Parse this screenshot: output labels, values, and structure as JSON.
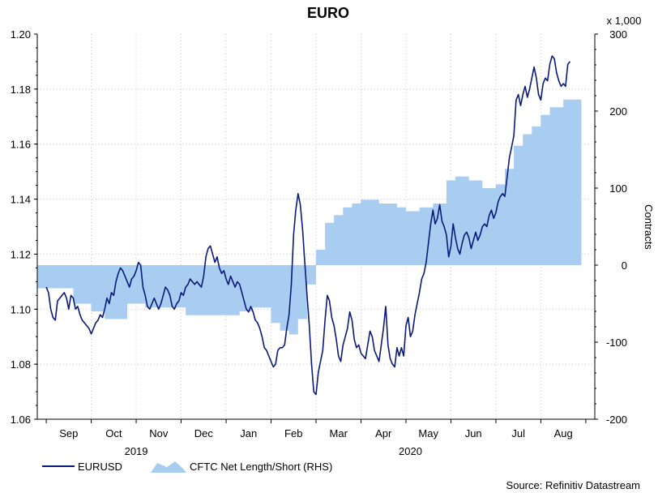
{
  "chart_data": {
    "type": "line",
    "title": "EURO",
    "xlabel": "",
    "ylabel": "",
    "y2label": "Contracts",
    "y2_multiplier": "x 1,000",
    "ylim": [
      1.06,
      1.2
    ],
    "y2lim": [
      -200,
      300
    ],
    "yticks": [
      "1.06",
      "1.08",
      "1.10",
      "1.12",
      "1.14",
      "1.16",
      "1.18",
      "1.20"
    ],
    "y2ticks": [
      "-200",
      "-100",
      "0",
      "100",
      "200",
      "300"
    ],
    "months": [
      "Sep",
      "Oct",
      "Nov",
      "Dec",
      "Jan",
      "Feb",
      "Mar",
      "Apr",
      "May",
      "Jun",
      "Jul",
      "Aug"
    ],
    "years": [
      "2019",
      "2020"
    ],
    "x_range": [
      -0.2,
      12.2
    ],
    "series": [
      {
        "name": "EURUSD",
        "axis": "left",
        "color": "#0a1a7a",
        "points": [
          [
            0.0,
            1.108
          ],
          [
            0.05,
            1.106
          ],
          [
            0.1,
            1.1
          ],
          [
            0.15,
            1.097
          ],
          [
            0.2,
            1.096
          ],
          [
            0.25,
            1.103
          ],
          [
            0.3,
            1.104
          ],
          [
            0.35,
            1.105
          ],
          [
            0.4,
            1.106
          ],
          [
            0.45,
            1.104
          ],
          [
            0.5,
            1.1
          ],
          [
            0.55,
            1.105
          ],
          [
            0.6,
            1.104
          ],
          [
            0.65,
            1.1
          ],
          [
            0.7,
            1.101
          ],
          [
            0.75,
            1.098
          ],
          [
            0.8,
            1.096
          ],
          [
            0.85,
            1.095
          ],
          [
            0.9,
            1.094
          ],
          [
            0.95,
            1.093
          ],
          [
            1.0,
            1.091
          ],
          [
            1.05,
            1.093
          ],
          [
            1.1,
            1.095
          ],
          [
            1.15,
            1.096
          ],
          [
            1.2,
            1.098
          ],
          [
            1.25,
            1.097
          ],
          [
            1.3,
            1.1
          ],
          [
            1.35,
            1.104
          ],
          [
            1.4,
            1.102
          ],
          [
            1.45,
            1.106
          ],
          [
            1.5,
            1.105
          ],
          [
            1.55,
            1.11
          ],
          [
            1.6,
            1.113
          ],
          [
            1.65,
            1.115
          ],
          [
            1.7,
            1.114
          ],
          [
            1.75,
            1.112
          ],
          [
            1.8,
            1.11
          ],
          [
            1.85,
            1.108
          ],
          [
            1.9,
            1.111
          ],
          [
            1.95,
            1.112
          ],
          [
            2.0,
            1.114
          ],
          [
            2.05,
            1.117
          ],
          [
            2.1,
            1.116
          ],
          [
            2.15,
            1.108
          ],
          [
            2.2,
            1.105
          ],
          [
            2.25,
            1.101
          ],
          [
            2.3,
            1.1
          ],
          [
            2.35,
            1.102
          ],
          [
            2.4,
            1.104
          ],
          [
            2.45,
            1.102
          ],
          [
            2.5,
            1.1
          ],
          [
            2.55,
            1.102
          ],
          [
            2.6,
            1.105
          ],
          [
            2.65,
            1.108
          ],
          [
            2.7,
            1.107
          ],
          [
            2.75,
            1.105
          ],
          [
            2.8,
            1.101
          ],
          [
            2.85,
            1.1
          ],
          [
            2.9,
            1.102
          ],
          [
            2.95,
            1.103
          ],
          [
            3.0,
            1.106
          ],
          [
            3.05,
            1.105
          ],
          [
            3.1,
            1.108
          ],
          [
            3.15,
            1.109
          ],
          [
            3.2,
            1.111
          ],
          [
            3.25,
            1.11
          ],
          [
            3.3,
            1.109
          ],
          [
            3.35,
            1.11
          ],
          [
            3.4,
            1.109
          ],
          [
            3.45,
            1.108
          ],
          [
            3.5,
            1.112
          ],
          [
            3.55,
            1.119
          ],
          [
            3.6,
            1.122
          ],
          [
            3.65,
            1.123
          ],
          [
            3.7,
            1.12
          ],
          [
            3.75,
            1.117
          ],
          [
            3.8,
            1.119
          ],
          [
            3.85,
            1.115
          ],
          [
            3.9,
            1.113
          ],
          [
            3.95,
            1.114
          ],
          [
            4.0,
            1.111
          ],
          [
            4.05,
            1.109
          ],
          [
            4.1,
            1.112
          ],
          [
            4.15,
            1.11
          ],
          [
            4.2,
            1.108
          ],
          [
            4.25,
            1.11
          ],
          [
            4.3,
            1.109
          ],
          [
            4.35,
            1.106
          ],
          [
            4.4,
            1.103
          ],
          [
            4.45,
            1.1
          ],
          [
            4.5,
            1.099
          ],
          [
            4.55,
            1.101
          ],
          [
            4.6,
            1.099
          ],
          [
            4.65,
            1.096
          ],
          [
            4.7,
            1.095
          ],
          [
            4.75,
            1.093
          ],
          [
            4.8,
            1.09
          ],
          [
            4.85,
            1.086
          ],
          [
            4.9,
            1.085
          ],
          [
            4.95,
            1.083
          ],
          [
            5.0,
            1.081
          ],
          [
            5.05,
            1.079
          ],
          [
            5.1,
            1.08
          ],
          [
            5.15,
            1.085
          ],
          [
            5.2,
            1.086
          ],
          [
            5.25,
            1.086
          ],
          [
            5.3,
            1.087
          ],
          [
            5.35,
            1.093
          ],
          [
            5.4,
            1.098
          ],
          [
            5.45,
            1.109
          ],
          [
            5.5,
            1.127
          ],
          [
            5.55,
            1.136
          ],
          [
            5.6,
            1.142
          ],
          [
            5.65,
            1.138
          ],
          [
            5.7,
            1.129
          ],
          [
            5.75,
            1.117
          ],
          [
            5.8,
            1.105
          ],
          [
            5.85,
            1.094
          ],
          [
            5.9,
            1.08
          ],
          [
            5.95,
            1.07
          ],
          [
            6.0,
            1.069
          ],
          [
            6.05,
            1.077
          ],
          [
            6.1,
            1.081
          ],
          [
            6.15,
            1.085
          ],
          [
            6.2,
            1.096
          ],
          [
            6.25,
            1.105
          ],
          [
            6.3,
            1.103
          ],
          [
            6.35,
            1.097
          ],
          [
            6.4,
            1.094
          ],
          [
            6.45,
            1.089
          ],
          [
            6.5,
            1.083
          ],
          [
            6.55,
            1.081
          ],
          [
            6.6,
            1.087
          ],
          [
            6.65,
            1.09
          ],
          [
            6.7,
            1.093
          ],
          [
            6.75,
            1.099
          ],
          [
            6.8,
            1.096
          ],
          [
            6.85,
            1.089
          ],
          [
            6.9,
            1.086
          ],
          [
            6.95,
            1.087
          ],
          [
            7.0,
            1.084
          ],
          [
            7.05,
            1.083
          ],
          [
            7.1,
            1.082
          ],
          [
            7.15,
            1.087
          ],
          [
            7.2,
            1.092
          ],
          [
            7.25,
            1.09
          ],
          [
            7.3,
            1.085
          ],
          [
            7.35,
            1.083
          ],
          [
            7.4,
            1.081
          ],
          [
            7.45,
            1.087
          ],
          [
            7.5,
            1.093
          ],
          [
            7.55,
            1.101
          ],
          [
            7.6,
            1.087
          ],
          [
            7.65,
            1.082
          ],
          [
            7.7,
            1.08
          ],
          [
            7.75,
            1.079
          ],
          [
            7.8,
            1.086
          ],
          [
            7.85,
            1.083
          ],
          [
            7.9,
            1.086
          ],
          [
            7.95,
            1.083
          ],
          [
            8.0,
            1.094
          ],
          [
            8.05,
            1.097
          ],
          [
            8.1,
            1.09
          ],
          [
            8.15,
            1.092
          ],
          [
            8.2,
            1.098
          ],
          [
            8.25,
            1.102
          ],
          [
            8.3,
            1.106
          ],
          [
            8.35,
            1.111
          ],
          [
            8.4,
            1.113
          ],
          [
            8.45,
            1.117
          ],
          [
            8.5,
            1.124
          ],
          [
            8.55,
            1.131
          ],
          [
            8.6,
            1.136
          ],
          [
            8.65,
            1.131
          ],
          [
            8.7,
            1.133
          ],
          [
            8.75,
            1.138
          ],
          [
            8.8,
            1.132
          ],
          [
            8.85,
            1.13
          ],
          [
            8.9,
            1.127
          ],
          [
            8.95,
            1.119
          ],
          [
            9.0,
            1.123
          ],
          [
            9.05,
            1.131
          ],
          [
            9.1,
            1.126
          ],
          [
            9.15,
            1.122
          ],
          [
            9.2,
            1.12
          ],
          [
            9.25,
            1.124
          ],
          [
            9.3,
            1.127
          ],
          [
            9.35,
            1.128
          ],
          [
            9.4,
            1.126
          ],
          [
            9.45,
            1.122
          ],
          [
            9.5,
            1.125
          ],
          [
            9.55,
            1.128
          ],
          [
            9.6,
            1.125
          ],
          [
            9.65,
            1.127
          ],
          [
            9.7,
            1.13
          ],
          [
            9.75,
            1.131
          ],
          [
            9.8,
            1.13
          ],
          [
            9.85,
            1.134
          ],
          [
            9.9,
            1.136
          ],
          [
            9.95,
            1.133
          ],
          [
            10.0,
            1.135
          ],
          [
            10.05,
            1.139
          ],
          [
            10.1,
            1.141
          ],
          [
            10.15,
            1.142
          ],
          [
            10.2,
            1.141
          ],
          [
            10.25,
            1.148
          ],
          [
            10.3,
            1.155
          ],
          [
            10.35,
            1.159
          ],
          [
            10.4,
            1.163
          ],
          [
            10.45,
            1.176
          ],
          [
            10.5,
            1.178
          ],
          [
            10.55,
            1.174
          ],
          [
            10.6,
            1.178
          ],
          [
            10.65,
            1.181
          ],
          [
            10.7,
            1.177
          ],
          [
            10.75,
            1.18
          ],
          [
            10.8,
            1.184
          ],
          [
            10.85,
            1.188
          ],
          [
            10.9,
            1.184
          ],
          [
            10.95,
            1.178
          ],
          [
            11.0,
            1.176
          ],
          [
            11.05,
            1.182
          ],
          [
            11.1,
            1.184
          ],
          [
            11.15,
            1.183
          ],
          [
            11.2,
            1.189
          ],
          [
            11.25,
            1.192
          ],
          [
            11.3,
            1.191
          ],
          [
            11.35,
            1.186
          ],
          [
            11.4,
            1.183
          ],
          [
            11.45,
            1.181
          ],
          [
            11.5,
            1.182
          ],
          [
            11.55,
            1.181
          ],
          [
            11.6,
            1.189
          ],
          [
            11.65,
            1.19
          ]
        ]
      },
      {
        "name": "CFTC Net Length/Short (RHS)",
        "axis": "right",
        "color": "#a9cdf0",
        "steps": [
          [
            -0.2,
            -30
          ],
          [
            0.6,
            -50
          ],
          [
            1.0,
            -60
          ],
          [
            1.3,
            -70
          ],
          [
            1.8,
            -50
          ],
          [
            2.2,
            -55
          ],
          [
            2.6,
            -55
          ],
          [
            3.1,
            -65
          ],
          [
            3.6,
            -65
          ],
          [
            4.3,
            -60
          ],
          [
            4.6,
            -55
          ],
          [
            5.0,
            -75
          ],
          [
            5.2,
            -85
          ],
          [
            5.4,
            -90
          ],
          [
            5.6,
            -70
          ],
          [
            5.8,
            -25
          ],
          [
            6.0,
            20
          ],
          [
            6.2,
            55
          ],
          [
            6.4,
            65
          ],
          [
            6.6,
            75
          ],
          [
            6.8,
            80
          ],
          [
            7.0,
            85
          ],
          [
            7.4,
            80
          ],
          [
            7.8,
            75
          ],
          [
            8.0,
            70
          ],
          [
            8.3,
            75
          ],
          [
            8.6,
            80
          ],
          [
            8.9,
            110
          ],
          [
            9.1,
            115
          ],
          [
            9.4,
            110
          ],
          [
            9.7,
            100
          ],
          [
            10.0,
            105
          ],
          [
            10.2,
            125
          ],
          [
            10.4,
            155
          ],
          [
            10.6,
            170
          ],
          [
            10.8,
            180
          ],
          [
            11.0,
            195
          ],
          [
            11.2,
            205
          ],
          [
            11.5,
            215
          ],
          [
            11.9,
            215
          ]
        ]
      }
    ],
    "legend": [
      "EURUSD",
      "CFTC Net Length/Short (RHS)"
    ],
    "legend_position": "bottom-left"
  },
  "source": "Source: Refinitiv Datastream"
}
